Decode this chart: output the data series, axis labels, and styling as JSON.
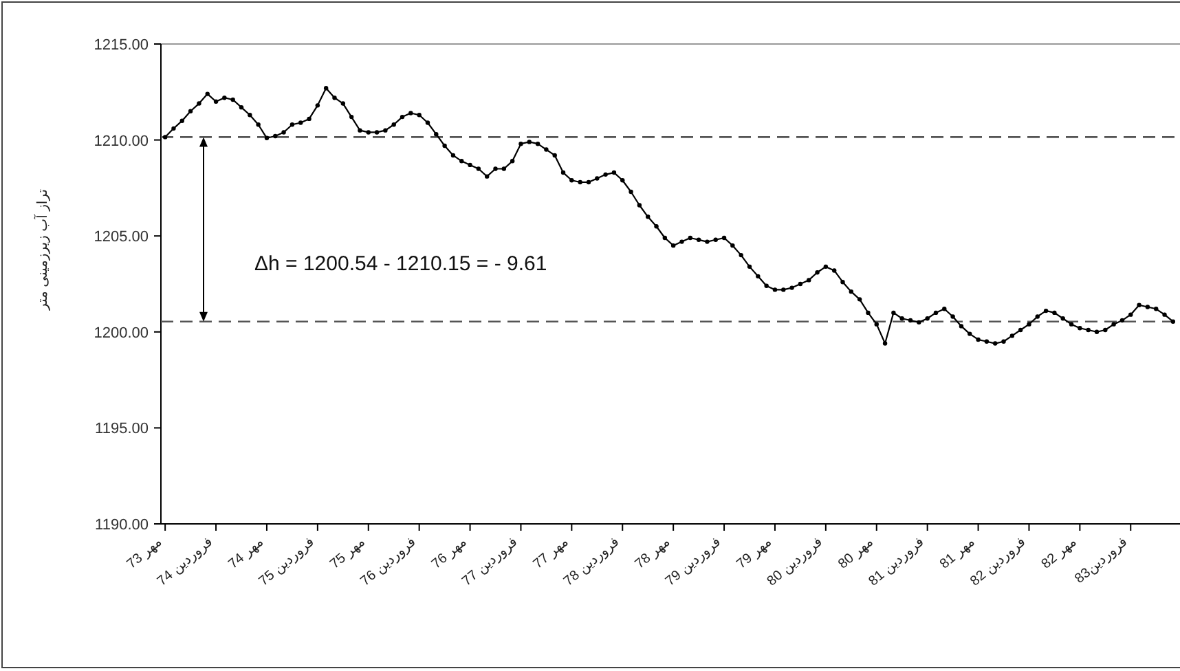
{
  "chart_data": {
    "type": "line",
    "ylabel": "تراز آب زیرزمینی متر",
    "categories": [
      "مهر 73",
      null,
      null,
      null,
      null,
      null,
      "فروردین 74",
      null,
      null,
      null,
      null,
      null,
      "مهر 74",
      null,
      null,
      null,
      null,
      null,
      "فروردین 75",
      null,
      null,
      null,
      null,
      null,
      "مهر 75",
      null,
      null,
      null,
      null,
      null,
      "فروردین 76",
      null,
      null,
      null,
      null,
      null,
      "مهر 76",
      null,
      null,
      null,
      null,
      null,
      "فروردین 77",
      null,
      null,
      null,
      null,
      null,
      "مهر 77",
      null,
      null,
      null,
      null,
      null,
      "فروردین 78",
      null,
      null,
      null,
      null,
      null,
      "مهر 78",
      null,
      null,
      null,
      null,
      null,
      "فروردین 79",
      null,
      null,
      null,
      null,
      null,
      "مهر 79",
      null,
      null,
      null,
      null,
      null,
      "فروردین 80",
      null,
      null,
      null,
      null,
      null,
      "مهر 80",
      null,
      null,
      null,
      null,
      null,
      "فروردین 81",
      null,
      null,
      null,
      null,
      null,
      "مهر 81",
      null,
      null,
      null,
      null,
      null,
      "فروردین 82",
      null,
      null,
      null,
      null,
      null,
      "مهر 82",
      null,
      null,
      null,
      null,
      null,
      "فروردین83",
      null,
      null,
      null,
      null,
      null
    ],
    "series": [
      {
        "color": "#000000",
        "values": [
          1210.15,
          1210.6,
          1211.0,
          1211.5,
          1211.9,
          1212.4,
          1212.0,
          1212.2,
          1212.1,
          1211.7,
          1211.3,
          1210.8,
          1210.1,
          1210.2,
          1210.4,
          1210.8,
          1210.9,
          1211.1,
          1211.8,
          1212.7,
          1212.2,
          1211.9,
          1211.2,
          1210.5,
          1210.4,
          1210.4,
          1210.5,
          1210.8,
          1211.2,
          1211.4,
          1211.3,
          1210.9,
          1210.3,
          1209.7,
          1209.2,
          1208.9,
          1208.7,
          1208.5,
          1208.1,
          1208.5,
          1208.5,
          1208.9,
          1209.8,
          1209.9,
          1209.8,
          1209.5,
          1209.2,
          1208.3,
          1207.9,
          1207.8,
          1207.8,
          1208.0,
          1208.2,
          1208.3,
          1207.9,
          1207.3,
          1206.6,
          1206.0,
          1205.5,
          1204.9,
          1204.5,
          1204.7,
          1204.9,
          1204.8,
          1204.7,
          1204.8,
          1204.9,
          1204.5,
          1204.0,
          1203.4,
          1202.9,
          1202.4,
          1202.2,
          1202.2,
          1202.3,
          1202.5,
          1202.7,
          1203.1,
          1203.4,
          1203.2,
          1202.6,
          1202.1,
          1201.7,
          1201.0,
          1200.4,
          1199.4,
          1201.0,
          1200.7,
          1200.6,
          1200.5,
          1200.7,
          1201.0,
          1201.2,
          1200.8,
          1200.3,
          1199.9,
          1199.6,
          1199.5,
          1199.4,
          1199.5,
          1199.8,
          1200.1,
          1200.4,
          1200.8,
          1201.1,
          1201.0,
          1200.7,
          1200.4,
          1200.2,
          1200.1,
          1200.0,
          1200.1,
          1200.4,
          1200.6,
          1200.9,
          1201.4,
          1201.3,
          1201.2,
          1200.9,
          1200.54
        ]
      }
    ],
    "ylim": [
      1190,
      1215
    ],
    "yticks": [
      {
        "value": 1190,
        "label": "1190.00"
      },
      {
        "value": 1195,
        "label": "1195.00"
      },
      {
        "value": 1200,
        "label": "1200.00"
      },
      {
        "value": 1205,
        "label": "1205.00"
      },
      {
        "value": 1210,
        "label": "1210.00"
      },
      {
        "value": 1215,
        "label": "1215.00"
      }
    ],
    "marker": "circle",
    "line_style": "solid",
    "ref_lines": [
      {
        "axis": "y",
        "value": 1210.15,
        "color": "#555555",
        "line_style": "dashed"
      },
      {
        "axis": "y",
        "value": 1200.54,
        "color": "#555555",
        "line_style": "dashed"
      }
    ],
    "annotations": [
      "Δh = 1200.54 - 1210.15 = - 9.61"
    ]
  }
}
